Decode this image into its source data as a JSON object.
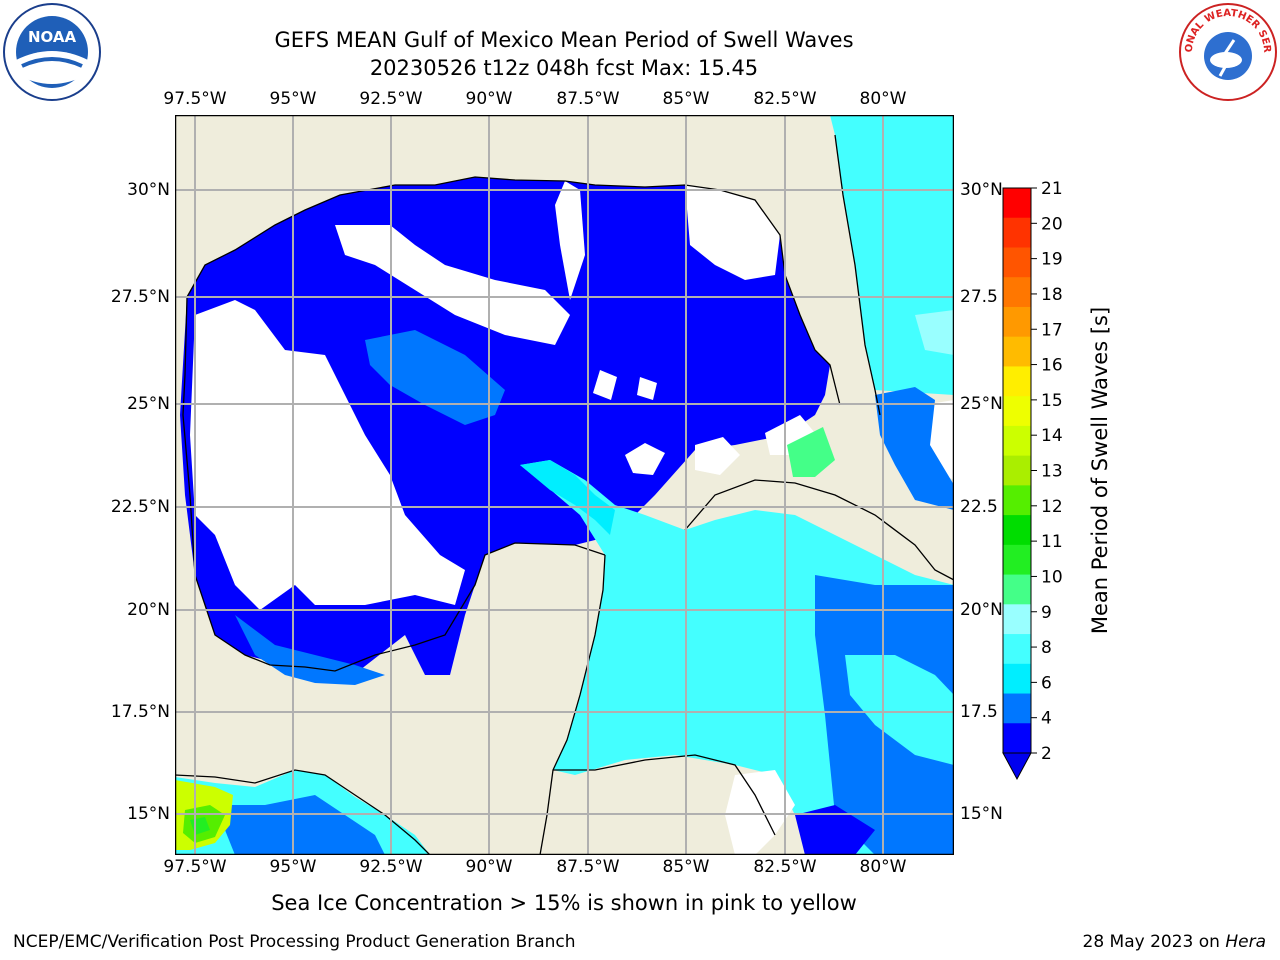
{
  "header": {
    "title_line1": "GEFS MEAN Gulf of Mexico Mean Period of Swell Waves",
    "title_line2": "20230526 t12z 048h fcst   Max: 15.45"
  },
  "map": {
    "lon_labels": [
      "97.5°W",
      "95°W",
      "92.5°W",
      "90°W",
      "87.5°W",
      "85°W",
      "82.5°W",
      "80°W"
    ],
    "lat_labels_left": [
      "30°N",
      "27.5°N",
      "25°N",
      "22.5°N",
      "20°N",
      "17.5°N",
      "15°N"
    ],
    "lat_labels_right": [
      "30°N",
      "27.5",
      "25°N",
      "22.5",
      "20°N",
      "17.5",
      "15°N"
    ],
    "colors": {
      "land": "#efeddc",
      "grid": "#b0b0b0",
      "coast": "#000000",
      "no_data": "#ffffff"
    }
  },
  "colorbar": {
    "label": "Mean Period of Swell Waves [s]",
    "ticks": [
      "2",
      "4",
      "6",
      "8",
      "9",
      "10",
      "11",
      "12",
      "13",
      "14",
      "15",
      "16",
      "17",
      "18",
      "19",
      "20",
      "21"
    ],
    "colors": [
      "#0000ff",
      "#0077ff",
      "#00eeff",
      "#44ffff",
      "#99ffff",
      "#44ff88",
      "#22ee22",
      "#00dd00",
      "#55ee00",
      "#aaee00",
      "#ccff00",
      "#eeff00",
      "#ffee00",
      "#ffbb00",
      "#ff9900",
      "#ff7700",
      "#ff5500",
      "#ff3300",
      "#ff0000"
    ]
  },
  "note": "Sea Ice Concentration > 15% is shown in pink to yellow",
  "footer": {
    "left": "NCEP/EMC/Verification Post Processing Product Generation Branch",
    "right_prefix": "28 May 2023 on ",
    "right_machine": "Hera"
  },
  "logos": {
    "left_text": "NOAA",
    "right_text": "NATIONAL WEATHER SERVICE"
  }
}
